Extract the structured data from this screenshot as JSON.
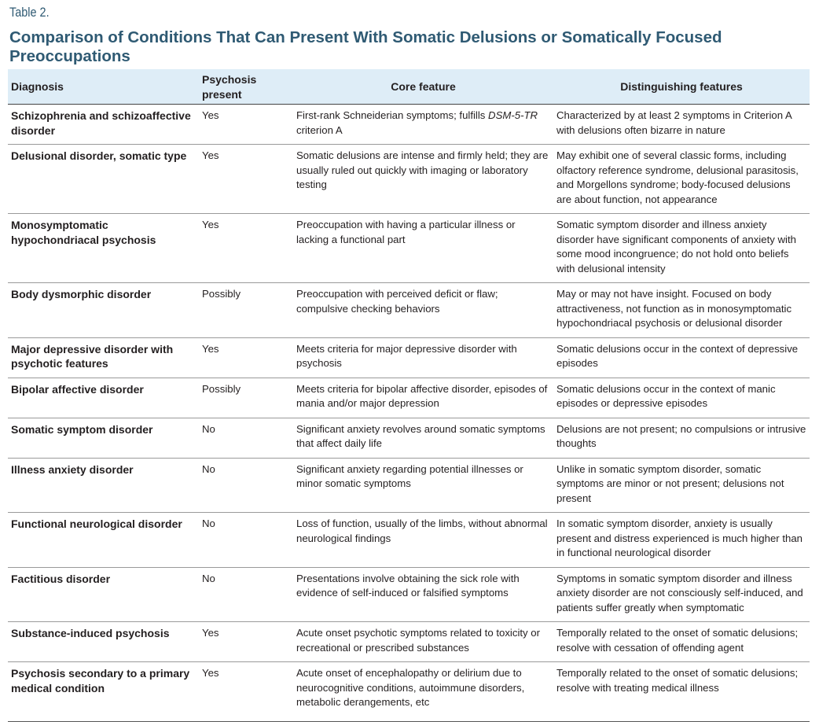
{
  "table_label": "Table 2.",
  "title": "Comparison of Conditions That Can Present With Somatic Delusions or Somatically Focused Preoccupations",
  "colors": {
    "title": "#2f5a73",
    "header_bg": "#deedf7"
  },
  "headers": [
    "Diagnosis",
    "Psychosis present",
    "Core feature",
    "Distinguishing features"
  ],
  "rows": [
    {
      "diagnosis": "Schizophrenia and schizoaffective disorder",
      "psychosis": "Yes",
      "core_pre": "First-rank Schneiderian symptoms; fulfills ",
      "core_italic": "DSM-5-TR",
      "core_post": " criterion A",
      "distinguishing": "Characterized by at least 2 symptoms in Criterion A with delusions often bizarre in nature"
    },
    {
      "diagnosis": "Delusional disorder, somatic type",
      "psychosis": "Yes",
      "core": "Somatic delusions are intense and firmly held; they are usually ruled out quickly with imaging or laboratory testing",
      "distinguishing": "May exhibit one of several classic forms, including olfactory reference syndrome, delusional parasitosis, and Morgellons syndrome; body-focused delusions are about function, not appearance"
    },
    {
      "diagnosis": "Monosymptomatic hypochondriacal psychosis",
      "psychosis": "Yes",
      "core": "Preoccupation with having a particular illness or lacking a functional part",
      "distinguishing": "Somatic symptom disorder and illness anxiety disorder have significant components of anxiety with some mood incongruence; do not hold onto beliefs with delusional intensity"
    },
    {
      "diagnosis": "Body dysmorphic disorder",
      "psychosis": "Possibly",
      "core": "Preoccupation with perceived deficit or flaw; compulsive checking behaviors",
      "distinguishing": "May or may not have insight. Focused on body attractiveness, not function as in monosymptomatic hypochondriacal psychosis or delusional disorder"
    },
    {
      "diagnosis": "Major depressive disorder with psychotic features",
      "psychosis": "Yes",
      "core": "Meets criteria for major depressive disorder with psychosis",
      "distinguishing": "Somatic delusions occur in the context of depressive episodes"
    },
    {
      "diagnosis": "Bipolar affective disorder",
      "psychosis": "Possibly",
      "core": "Meets criteria for bipolar affective disorder, episodes of mania and/or major depression",
      "distinguishing": "Somatic delusions occur in the context of manic episodes or depressive episodes"
    },
    {
      "diagnosis": "Somatic symptom disorder",
      "psychosis": "No",
      "core": "Significant anxiety revolves around somatic symptoms that affect daily life",
      "distinguishing": "Delusions are not present; no compulsions or intrusive thoughts"
    },
    {
      "diagnosis": "Illness anxiety disorder",
      "psychosis": "No",
      "core": "Significant anxiety regarding potential illnesses or minor somatic symptoms",
      "distinguishing": "Unlike in somatic symptom disorder, somatic symptoms are minor or not present; delusions not present"
    },
    {
      "diagnosis": "Functional neurological disorder",
      "psychosis": "No",
      "core": "Loss of function, usually of the limbs, without abnormal neurological findings",
      "distinguishing": "In somatic symptom disorder, anxiety is usually present and distress experienced is much higher than in functional neurological disorder"
    },
    {
      "diagnosis": "Factitious disorder",
      "psychosis": "No",
      "core": "Presentations involve obtaining the sick role with evidence of self-induced or falsified symptoms",
      "distinguishing": "Symptoms in somatic symptom disorder and illness anxiety disorder are not consciously self-induced, and patients suffer greatly when symptomatic"
    },
    {
      "diagnosis": "Substance-induced psychosis",
      "psychosis": "Yes",
      "core": "Acute onset psychotic symptoms related to toxicity or recreational or prescribed substances",
      "distinguishing": "Temporally related to the onset of somatic delusions; resolve with cessation of offending agent"
    },
    {
      "diagnosis": "Psychosis secondary to a primary medical condition",
      "psychosis": "Yes",
      "core": "Acute onset of encephalopathy or delirium due to neurocognitive conditions, autoimmune disorders, metabolic derangements, etc",
      "distinguishing": "Temporally related to the onset of somatic delusions; resolve with treating medical illness"
    }
  ]
}
